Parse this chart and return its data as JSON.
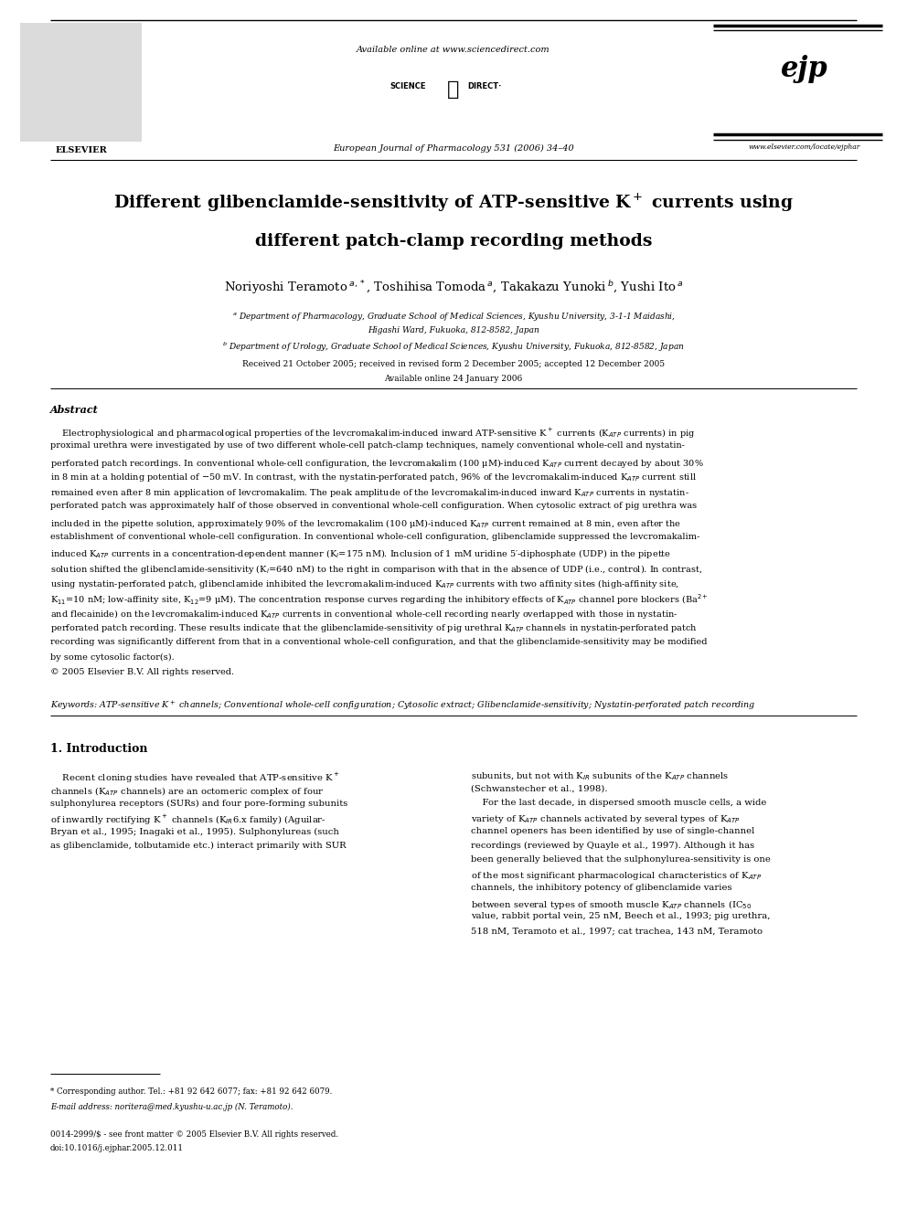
{
  "page_width": 9.92,
  "page_height": 13.23,
  "bg_color": "#ffffff",
  "header_available": "Available online at www.sciencedirect.com",
  "header_journal": "European Journal of Pharmacology 531 (2006) 34–40",
  "header_elsevier": "ELSEVIER",
  "header_website": "www.elsevier.com/locate/ejphar",
  "title_line1": "Different glibenclamide-sensitivity of ATP-sensitive K$^+$ currents using",
  "title_line2": "different patch-clamp recording methods",
  "authors": "Noriyoshi Teramoto$\\,^{a,*}$, Toshihisa Tomoda$\\,^a$, Takakazu Yunoki$\\,^b$, Yushi Ito$\\,^a$",
  "affil_a1": "$^a$ Department of Pharmacology, Graduate School of Medical Sciences, Kyushu University, 3-1-1 Maidashi,",
  "affil_a2": "Higashi Ward, Fukuoka, 812-8582, Japan",
  "affil_b": "$^b$ Department of Urology, Graduate School of Medical Sciences, Kyushu University, Fukuoka, 812-8582, Japan",
  "received": "Received 21 October 2005; received in revised form 2 December 2005; accepted 12 December 2005",
  "available_online": "Available online 24 January 2006",
  "abstract_label": "Abstract",
  "keywords_line": "Keywords: ATP-sensitive K$^+$ channels; Conventional whole-cell configuration; Cytosolic extract; Glibenclamide-sensitivity; Nystatin-perforated patch recording",
  "intro_title": "1. Introduction",
  "footer_star": "* Corresponding author. Tel.: +81 92 642 6077; fax: +81 92 642 6079.",
  "footer_email": "E-mail address: noritera@med.kyushu-u.ac.jp (N. Teramoto).",
  "footer_issn": "0014-2999/$ - see front matter © 2005 Elsevier B.V. All rights reserved.",
  "footer_doi": "doi:10.1016/j.ejphar.2005.12.011",
  "link_color": "#1a4a8a",
  "text_color": "#000000"
}
